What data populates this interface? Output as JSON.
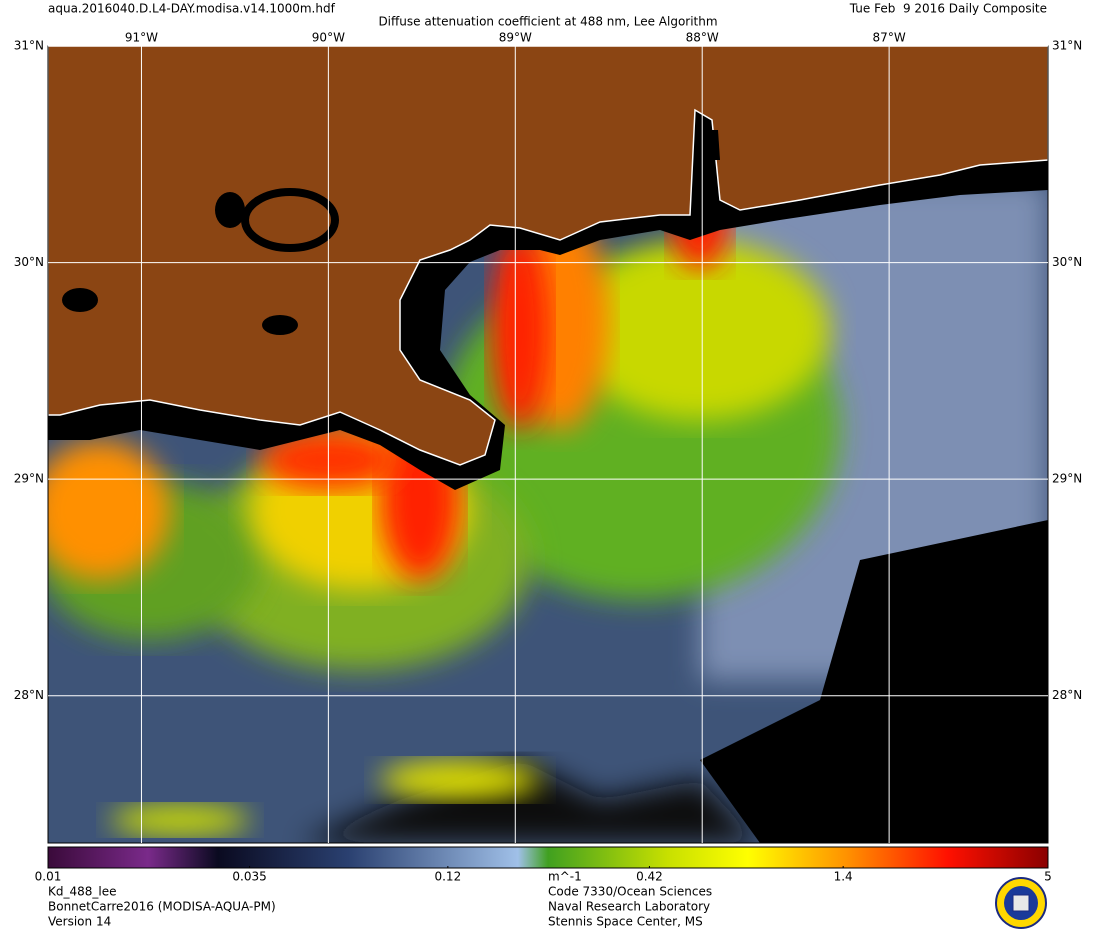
{
  "header": {
    "filename": "aqua.2016040.D.L4-DAY.modisa.v14.1000m.hdf",
    "title": "Diffuse attenuation coefficient at 488 nm, Lee Algorithm",
    "date": "Tue Feb  9 2016 Daily Composite"
  },
  "map": {
    "xlim": [
      -91.5,
      -86.15
    ],
    "ylim": [
      27.32,
      31.0
    ],
    "lon_ticks": [
      {
        "value": -91,
        "label": "91°W"
      },
      {
        "value": -90,
        "label": "90°W"
      },
      {
        "value": -89,
        "label": "89°W"
      },
      {
        "value": -88,
        "label": "88°W"
      },
      {
        "value": -87,
        "label": "87°W"
      }
    ],
    "lat_ticks": [
      {
        "value": 28,
        "label": "28°N"
      },
      {
        "value": 29,
        "label": "29°N"
      },
      {
        "value": 30,
        "label": "30°N"
      },
      {
        "value": 31,
        "label": "31°N"
      }
    ]
  },
  "colorbar": {
    "lim": [
      0.01,
      5
    ],
    "log": true,
    "ticks": [
      0.01,
      0.035,
      0.12,
      0.42,
      1.4,
      5
    ],
    "unit": "m^-1"
  },
  "footer": {
    "left": [
      "Kd_488_lee",
      "BonnetCarre2016 (MODISA-AQUA-PM)",
      "Version 14"
    ],
    "center": [
      "Code 7330/Ocean Sciences",
      "Naval Research Laboratory",
      "Stennis Space Center, MS"
    ]
  }
}
